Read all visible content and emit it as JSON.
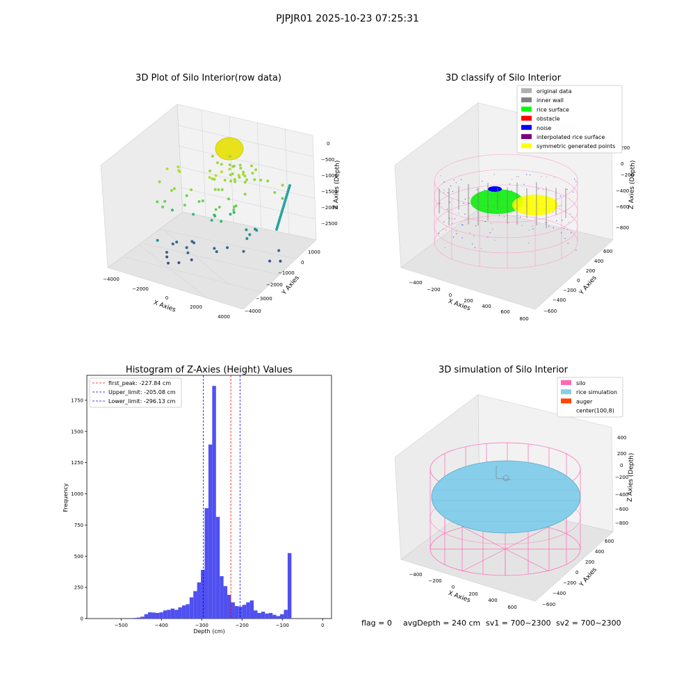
{
  "suptitle": "PJPJR01 2025-10-23 07:25:31",
  "footer": {
    "flag": "flag = 0",
    "avg": "avgDepth = 240 cm",
    "sv1": "sv1 = 700~2300",
    "sv2": "sv2 = 700~2300"
  },
  "colors": {
    "hist_bar": "#5050f0",
    "peak_line": "#ff0000",
    "limit_line": "#0000ff",
    "silo_pink": "#ff69b4",
    "rice_blue": "#87ceeb",
    "auger": "#ff4500"
  },
  "panels": {
    "raw": {
      "title": "3D Plot of Silo Interior(row data)",
      "xlabel": "X Axies",
      "ylabel": "Y Axies",
      "zlabel": "Z Axies (Depth)",
      "xticks": [
        "−4000",
        "−2000",
        "0",
        "2000",
        "4000"
      ],
      "yticks": [
        "1000",
        "0",
        "−1000",
        "−2000",
        "−3000",
        "−4000"
      ],
      "zticks": [
        "0",
        "−500",
        "−1000",
        "−1500",
        "−2000",
        "−2500"
      ]
    },
    "classify": {
      "title": "3D classify of Silo Interior",
      "xlabel": "X Axies",
      "ylabel": "Y Axies",
      "zlabel": "Z Axies (Depth)",
      "xticks": [
        "−400",
        "−200",
        "0",
        "200",
        "400",
        "600",
        "800"
      ],
      "yticks": [
        "600",
        "400",
        "200",
        "0",
        "−200",
        "−400",
        "−600"
      ],
      "zticks": [
        "200",
        "0",
        "−200",
        "−400",
        "−600",
        "−800"
      ],
      "legend": [
        {
          "label": "original data",
          "color": "#b0b0b0"
        },
        {
          "label": "inner wall",
          "color": "#808080"
        },
        {
          "label": "rice surface",
          "color": "#00ff00"
        },
        {
          "label": "obstacle",
          "color": "#ff0000"
        },
        {
          "label": "noise",
          "color": "#0000ff"
        },
        {
          "label": "interpolated rice surface",
          "color": "#800080"
        },
        {
          "label": "symmetric generated points",
          "color": "#ffff00"
        }
      ]
    },
    "simulation": {
      "title": "3D simulation of Silo Interior",
      "xlabel": "X Axies",
      "ylabel": "Y Axies",
      "zlabel": "Z Axies (Depth)",
      "xticks": [
        "−400",
        "−200",
        "0",
        "200",
        "400",
        "600"
      ],
      "yticks": [
        "600",
        "400",
        "200",
        "0",
        "−200",
        "−400",
        "−600"
      ],
      "zticks": [
        "400",
        "200",
        "0",
        "−200",
        "−400",
        "−600",
        "−800"
      ],
      "legend": [
        {
          "label": "silo",
          "color": "#ff69b4"
        },
        {
          "label": "rice simulation",
          "color": "#87ceeb"
        },
        {
          "label": "auger",
          "color": "#ff4500"
        },
        {
          "label": "center(100,8)",
          "color": "#ffffff"
        }
      ]
    }
  },
  "chart_data": {
    "type": "bar",
    "title": "Histogram of Z-Axies (Height) Values",
    "xlabel": "Depth (cm)",
    "ylabel": "Frequency",
    "xlim": [
      -585,
      22
    ],
    "ylim": [
      0,
      1950
    ],
    "xticks": [
      -500,
      -400,
      -300,
      -200,
      -100,
      0
    ],
    "xtick_labels": [
      "−500",
      "−400",
      "−300",
      "−200",
      "−100",
      "0"
    ],
    "yticks": [
      0,
      250,
      500,
      750,
      1000,
      1250,
      1500,
      1750
    ],
    "bin_width": 9.36,
    "bin_starts": [
      -470.6,
      -461.2,
      -451.9,
      -442.5,
      -433.2,
      -423.8,
      -414.4,
      -405.1,
      -395.7,
      -386.4,
      -377.0,
      -367.6,
      -358.3,
      -348.9,
      -339.6,
      -330.2,
      -320.8,
      -311.5,
      -302.1,
      -292.8,
      -283.4,
      -274.0,
      -264.7,
      -255.3,
      -246.0,
      -236.6,
      -227.2,
      -217.9,
      -208.5,
      -199.2,
      -189.8,
      -180.4,
      -171.1,
      -161.7,
      -152.4,
      -143.0,
      -133.6,
      -124.3,
      -114.9,
      -105.6,
      -96.2,
      -86.8,
      -77.5,
      -68.1,
      -58.8,
      -49.4,
      -40.0,
      -30.7,
      -21.3,
      -12.0
    ],
    "values": [
      5,
      8,
      15,
      35,
      50,
      48,
      45,
      50,
      65,
      70,
      80,
      70,
      90,
      105,
      115,
      170,
      220,
      290,
      390,
      885,
      1395,
      1865,
      815,
      340,
      260,
      190,
      130,
      100,
      95,
      110,
      130,
      145,
      65,
      45,
      55,
      40,
      45,
      30,
      20,
      35,
      70,
      525,
      0,
      0,
      0,
      0,
      0,
      0,
      0,
      0
    ],
    "legend": [
      {
        "label": "first_peak: -227.84 cm",
        "value": -227.84,
        "style": "peak"
      },
      {
        "label": "Upper_limit: -205.08 cm",
        "value": -205.08,
        "style": "limit"
      },
      {
        "label": "Lower_limit: -296.13 cm",
        "value": -296.13,
        "style": "limit"
      }
    ]
  }
}
